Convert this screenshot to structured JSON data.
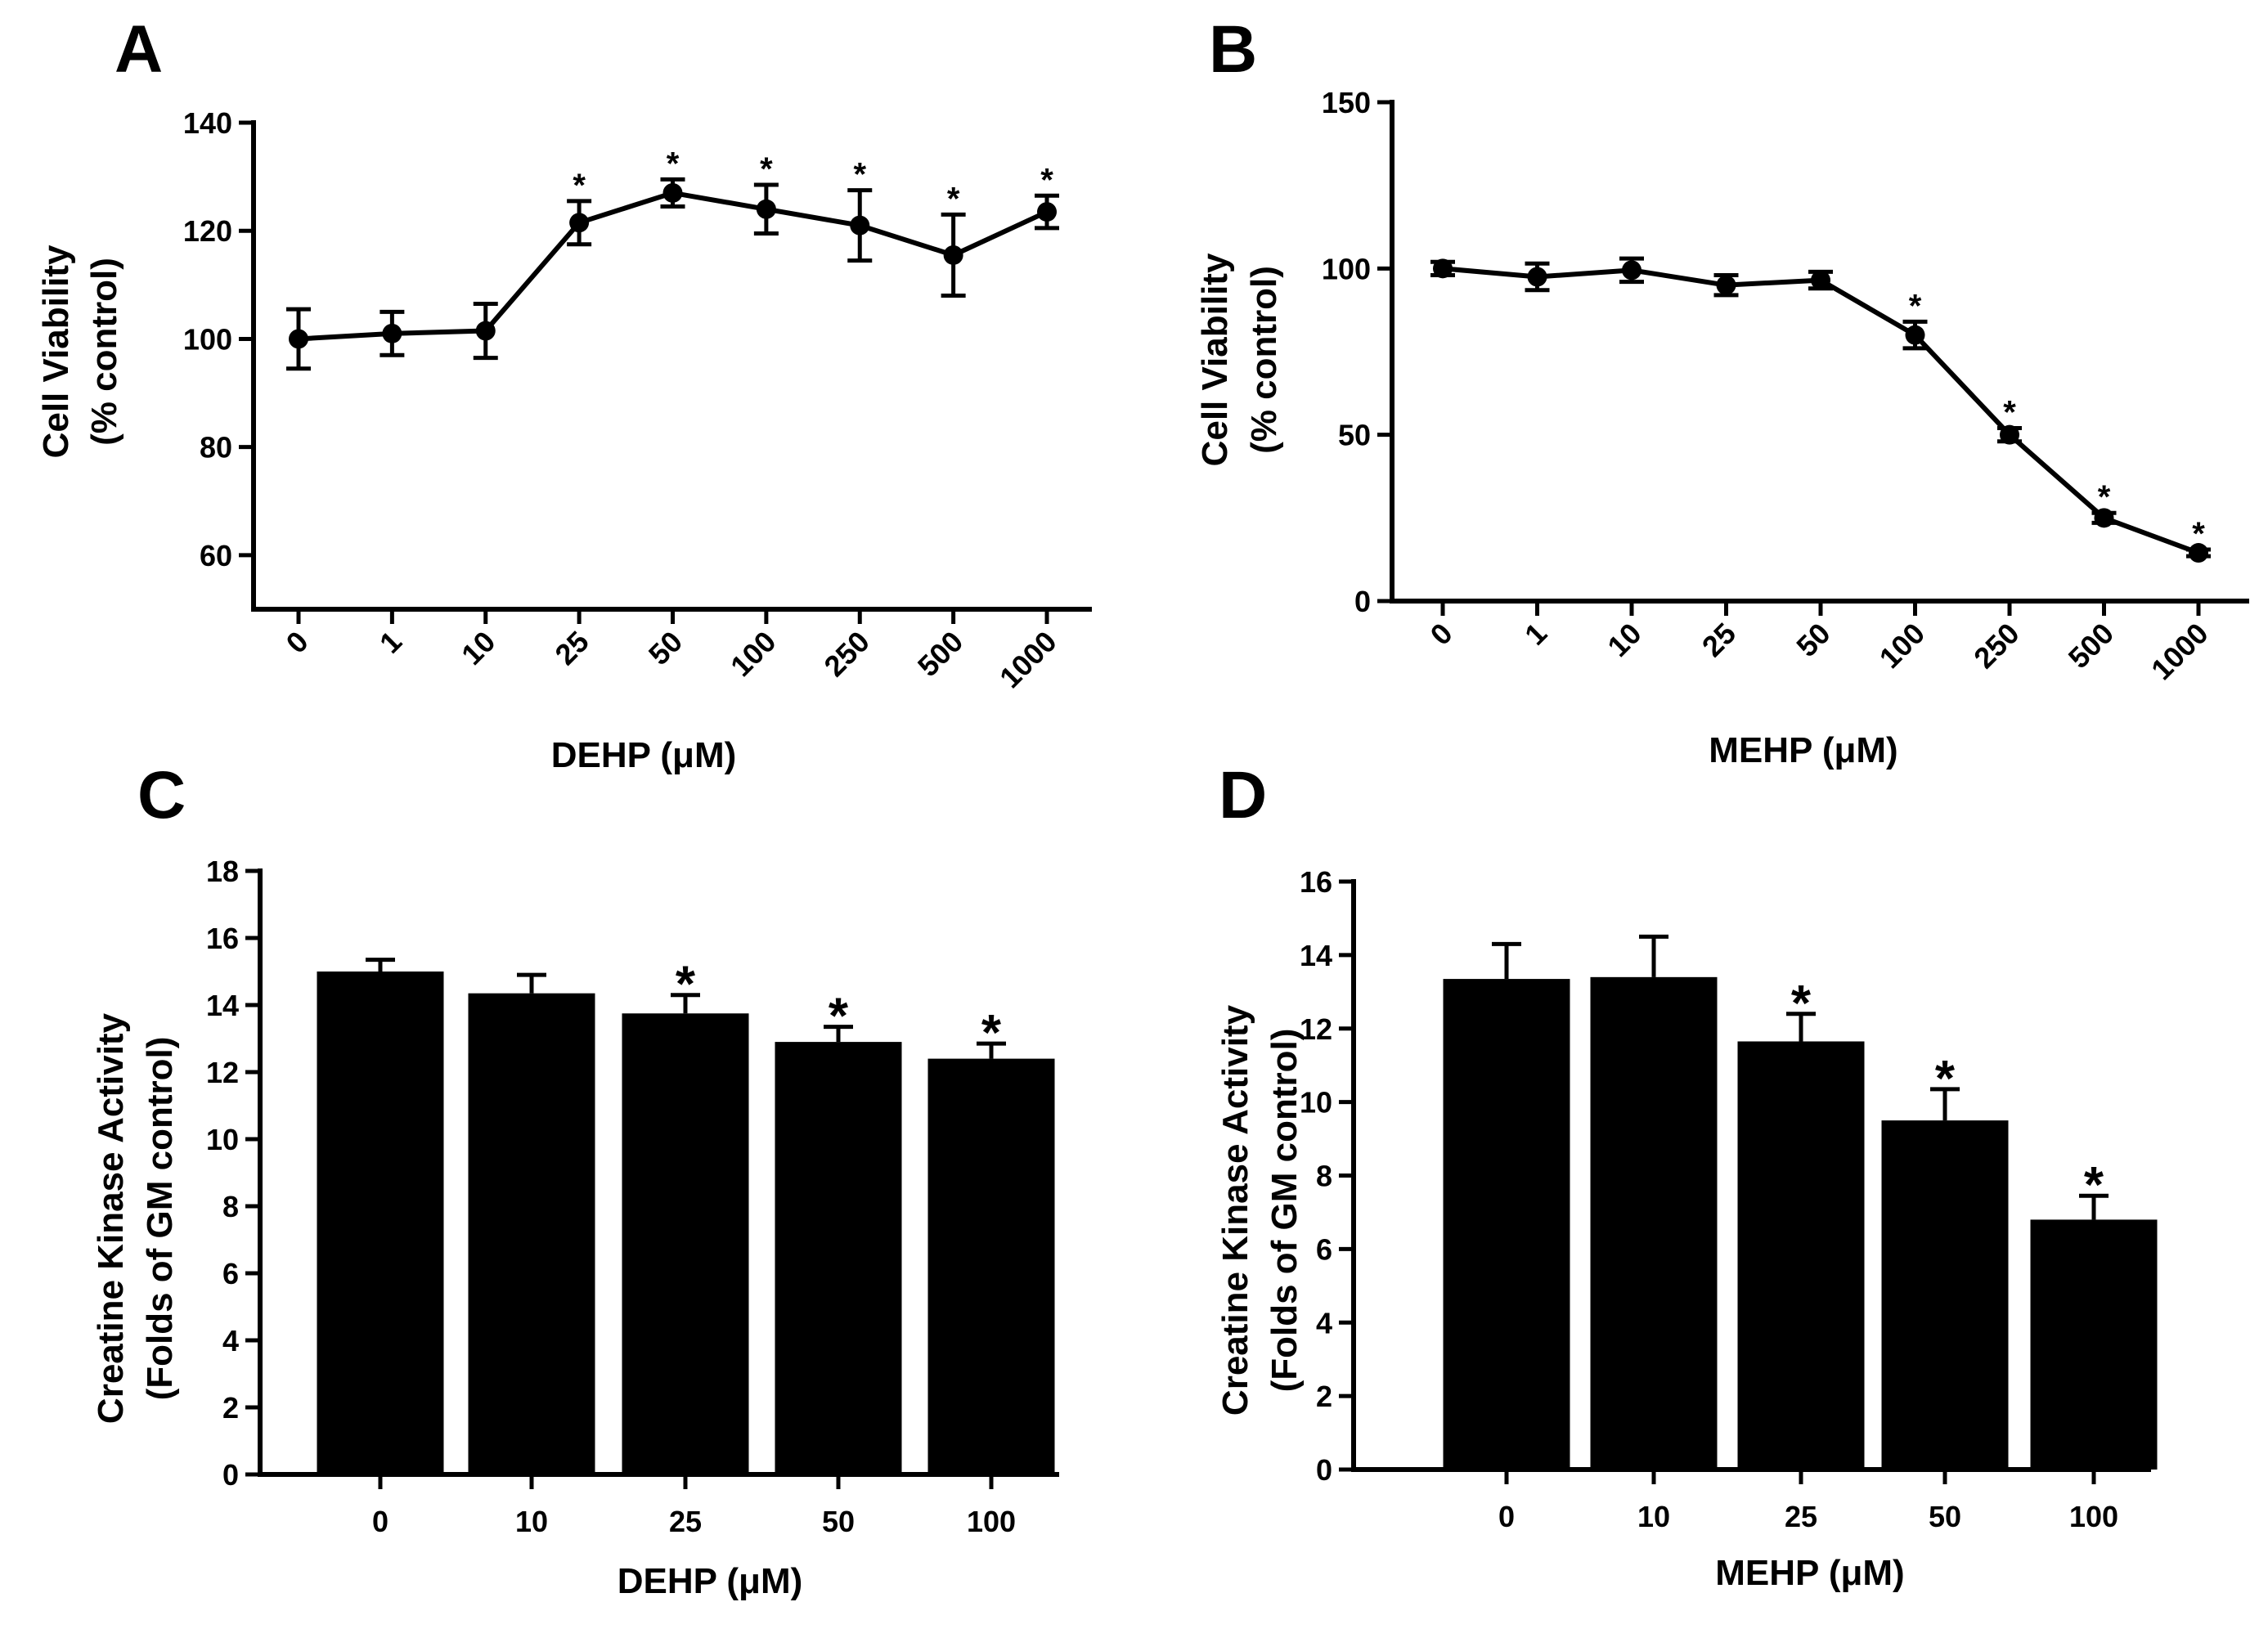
{
  "chart_data": [
    {
      "panel": "A",
      "type": "line",
      "categories": [
        "0",
        "1",
        "10",
        "25",
        "50",
        "100",
        "250",
        "500",
        "1000"
      ],
      "values": [
        100,
        101,
        101.5,
        121.5,
        127,
        124,
        121,
        115.5,
        123.5
      ],
      "errors": [
        5.5,
        4,
        5,
        4,
        2.5,
        4.5,
        6.5,
        7.5,
        3
      ],
      "significant": [
        false,
        false,
        false,
        true,
        true,
        true,
        true,
        true,
        true
      ],
      "significance_marker": "*",
      "ylabel": "Cell Viability",
      "ylabel_sub": "(% control)",
      "xlabel": "DEHP (μM)",
      "ylim": [
        50,
        140
      ],
      "yticks": [
        60,
        80,
        100,
        120,
        140
      ]
    },
    {
      "panel": "B",
      "type": "line",
      "categories": [
        "0",
        "1",
        "10",
        "25",
        "50",
        "100",
        "250",
        "500",
        "1000"
      ],
      "values": [
        100,
        97.5,
        99.5,
        95,
        96.5,
        80,
        50,
        25,
        14.5
      ],
      "errors": [
        2,
        4,
        3.5,
        3,
        2.5,
        4,
        2,
        1.5,
        1
      ],
      "significant": [
        false,
        false,
        false,
        false,
        false,
        true,
        true,
        true,
        true
      ],
      "significance_marker": "*",
      "ylabel": "Cell Viability",
      "ylabel_sub": "(% control)",
      "xlabel": "MEHP (μM)",
      "ylim": [
        0,
        150
      ],
      "yticks": [
        0,
        50,
        100,
        150
      ]
    },
    {
      "panel": "C",
      "type": "bar",
      "categories": [
        "0",
        "10",
        "25",
        "50",
        "100"
      ],
      "values": [
        15,
        14.35,
        13.75,
        12.9,
        12.4
      ],
      "errors": [
        0.35,
        0.55,
        0.55,
        0.45,
        0.45
      ],
      "significant": [
        false,
        false,
        true,
        true,
        true
      ],
      "significance_marker": "*",
      "ylabel": "Creatine Kinase Activity",
      "ylabel_sub": "(Folds of GM control)",
      "xlabel": "DEHP (μM)",
      "ylim": [
        0,
        18
      ],
      "yticks": [
        0,
        2,
        4,
        6,
        8,
        10,
        12,
        14,
        16,
        18
      ]
    },
    {
      "panel": "D",
      "type": "bar",
      "categories": [
        "0",
        "10",
        "25",
        "50",
        "100"
      ],
      "values": [
        13.35,
        13.4,
        11.65,
        9.5,
        6.8
      ],
      "errors": [
        0.95,
        1.1,
        0.75,
        0.85,
        0.65
      ],
      "significant": [
        false,
        false,
        true,
        true,
        true
      ],
      "significance_marker": "*",
      "ylabel": "Creatine Kinase Activity",
      "ylabel_sub": "(Folds of GM control)",
      "xlabel": "MEHP (μM)",
      "ylim": [
        0,
        16
      ],
      "yticks": [
        0,
        2,
        4,
        6,
        8,
        10,
        12,
        14,
        16
      ]
    }
  ]
}
